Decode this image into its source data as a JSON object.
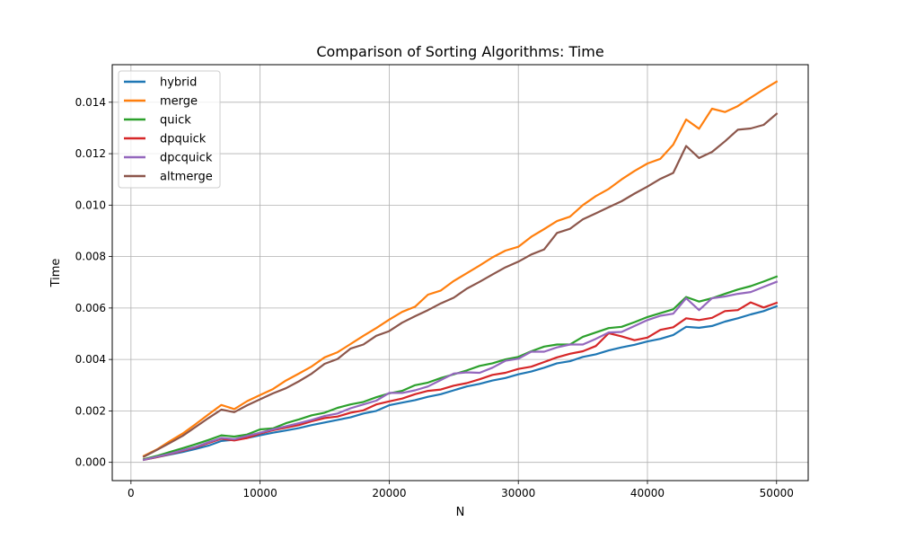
{
  "chart_data": {
    "type": "line",
    "title": "Comparison of Sorting Algorithms: Time",
    "xlabel": "N",
    "ylabel": "Time",
    "xlim": [
      -1450,
      52450
    ],
    "ylim": [
      -0.00071,
      0.01546
    ],
    "xticks": [
      0,
      10000,
      20000,
      30000,
      40000,
      50000
    ],
    "xtick_labels": [
      "0",
      "10000",
      "20000",
      "30000",
      "40000",
      "50000"
    ],
    "yticks": [
      0.0,
      0.002,
      0.004,
      0.006,
      0.008,
      0.01,
      0.012,
      0.014
    ],
    "ytick_labels": [
      "0.000",
      "0.002",
      "0.004",
      "0.006",
      "0.008",
      "0.010",
      "0.012",
      "0.014"
    ],
    "grid": true,
    "legend_position": "top-left",
    "x": [
      1000,
      2000,
      3000,
      4000,
      5000,
      6000,
      7000,
      8000,
      9000,
      10000,
      11000,
      12000,
      13000,
      14000,
      15000,
      16000,
      17000,
      18000,
      19000,
      20000,
      21000,
      22000,
      23000,
      24000,
      25000,
      26000,
      27000,
      28000,
      29000,
      30000,
      31000,
      32000,
      33000,
      34000,
      35000,
      36000,
      37000,
      38000,
      39000,
      40000,
      41000,
      42000,
      43000,
      44000,
      45000,
      46000,
      47000,
      48000,
      49000,
      50000
    ],
    "series": [
      {
        "name": "hybrid",
        "color": "#1f77b4",
        "values": [
          0.0001,
          0.0002,
          0.0003,
          0.0004,
          0.00052,
          0.00065,
          0.00083,
          0.00088,
          0.00095,
          0.00105,
          0.00115,
          0.00124,
          0.00133,
          0.00145,
          0.00155,
          0.00165,
          0.00175,
          0.0019,
          0.002,
          0.00222,
          0.00232,
          0.00242,
          0.00255,
          0.00265,
          0.0028,
          0.00295,
          0.00305,
          0.00318,
          0.00328,
          0.00342,
          0.00353,
          0.00368,
          0.00385,
          0.00393,
          0.0041,
          0.0042,
          0.00435,
          0.00447,
          0.00457,
          0.0047,
          0.0048,
          0.00495,
          0.00527,
          0.00523,
          0.0053,
          0.00547,
          0.0056,
          0.00575,
          0.00588,
          0.00607
        ]
      },
      {
        "name": "merge",
        "color": "#ff7f0e",
        "values": [
          0.00025,
          0.0005,
          0.00082,
          0.00112,
          0.00148,
          0.00186,
          0.00223,
          0.00207,
          0.00238,
          0.00262,
          0.00285,
          0.00318,
          0.00345,
          0.00373,
          0.00408,
          0.00428,
          0.0046,
          0.00492,
          0.00522,
          0.00555,
          0.00585,
          0.00605,
          0.00652,
          0.00668,
          0.00705,
          0.00735,
          0.00765,
          0.00797,
          0.00823,
          0.00838,
          0.00877,
          0.00907,
          0.00938,
          0.00955,
          0.01,
          0.01035,
          0.01063,
          0.011,
          0.01133,
          0.01162,
          0.0118,
          0.01235,
          0.01333,
          0.01297,
          0.01375,
          0.01362,
          0.01385,
          0.01418,
          0.0145,
          0.0148
        ]
      },
      {
        "name": "quick",
        "color": "#2ca02c",
        "values": [
          0.00012,
          0.00025,
          0.0004,
          0.00055,
          0.0007,
          0.00087,
          0.00105,
          0.001,
          0.00108,
          0.00128,
          0.00132,
          0.00152,
          0.00167,
          0.00183,
          0.00193,
          0.00212,
          0.00225,
          0.00235,
          0.00253,
          0.00268,
          0.00278,
          0.003,
          0.0031,
          0.00328,
          0.00342,
          0.00357,
          0.00375,
          0.00385,
          0.004,
          0.0041,
          0.00432,
          0.0045,
          0.00458,
          0.00458,
          0.00488,
          0.00505,
          0.00522,
          0.00527,
          0.00545,
          0.00565,
          0.0058,
          0.00595,
          0.00643,
          0.00625,
          0.00638,
          0.00655,
          0.00672,
          0.00685,
          0.00703,
          0.00722
        ]
      },
      {
        "name": "dpquick",
        "color": "#d62728",
        "values": [
          0.0001,
          0.0002,
          0.00032,
          0.00045,
          0.00058,
          0.00075,
          0.00092,
          0.00085,
          0.00095,
          0.00112,
          0.00125,
          0.00135,
          0.00145,
          0.0016,
          0.00172,
          0.00178,
          0.00193,
          0.00202,
          0.00225,
          0.00237,
          0.00248,
          0.00265,
          0.00278,
          0.00283,
          0.00298,
          0.00308,
          0.00323,
          0.0034,
          0.00348,
          0.00363,
          0.00372,
          0.0039,
          0.00408,
          0.00422,
          0.00432,
          0.00452,
          0.00502,
          0.0049,
          0.00475,
          0.00485,
          0.00515,
          0.00525,
          0.0056,
          0.00553,
          0.00562,
          0.00588,
          0.00592,
          0.00622,
          0.00602,
          0.0062
        ]
      },
      {
        "name": "dpcquick",
        "color": "#9467bd",
        "values": [
          0.0001,
          0.00022,
          0.00033,
          0.00047,
          0.0006,
          0.00078,
          0.00095,
          0.0009,
          0.00103,
          0.00115,
          0.00128,
          0.0014,
          0.00152,
          0.00165,
          0.0018,
          0.0019,
          0.0021,
          0.00225,
          0.0024,
          0.0027,
          0.0027,
          0.0028,
          0.00295,
          0.0032,
          0.00345,
          0.0035,
          0.00348,
          0.00368,
          0.00395,
          0.00403,
          0.0043,
          0.0043,
          0.00447,
          0.00458,
          0.00458,
          0.0048,
          0.00505,
          0.00507,
          0.0053,
          0.00553,
          0.0057,
          0.00578,
          0.00638,
          0.00592,
          0.00638,
          0.00645,
          0.00655,
          0.00662,
          0.00682,
          0.00702
        ]
      },
      {
        "name": "altmerge",
        "color": "#8c564b",
        "values": [
          0.00022,
          0.00048,
          0.00075,
          0.00103,
          0.00137,
          0.00172,
          0.00205,
          0.00195,
          0.00222,
          0.00245,
          0.00268,
          0.00288,
          0.00315,
          0.00345,
          0.00383,
          0.00402,
          0.00442,
          0.00458,
          0.00492,
          0.0051,
          0.00543,
          0.00568,
          0.00592,
          0.00618,
          0.0064,
          0.00675,
          0.00702,
          0.0073,
          0.00758,
          0.0078,
          0.00808,
          0.00828,
          0.00892,
          0.00908,
          0.00945,
          0.00968,
          0.00992,
          0.01015,
          0.01045,
          0.01072,
          0.01102,
          0.01125,
          0.0123,
          0.01183,
          0.01207,
          0.01248,
          0.01293,
          0.01298,
          0.01312,
          0.01355
        ]
      }
    ]
  }
}
